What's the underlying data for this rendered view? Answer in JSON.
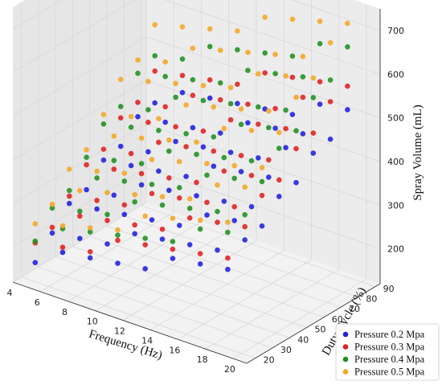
{
  "chart_data": {
    "type": "scatter",
    "projection": "3d",
    "xlabel": "Frequency (Hz)",
    "ylabel": "Duty Cycle (%)",
    "zlabel": "Spray Volume (mL)",
    "xlim": [
      4,
      21
    ],
    "ylim": [
      15,
      93
    ],
    "zlim": [
      120,
      750
    ],
    "x_ticks": [
      "4",
      "6",
      "8",
      "10",
      "12",
      "14",
      "16",
      "18",
      "20"
    ],
    "y_ticks": [
      "20",
      "30",
      "40",
      "50",
      "60",
      "70",
      "80",
      "90"
    ],
    "z_ticks": [
      "200",
      "300",
      "400",
      "500",
      "600",
      "700"
    ],
    "grid": true,
    "legend_position": "bottom-right",
    "x_values": [
      5,
      7,
      9,
      11,
      13,
      15,
      17,
      19
    ],
    "y_values": [
      20,
      30,
      40,
      50,
      60,
      70,
      80,
      90
    ],
    "series": [
      {
        "name": "Pressure 0.2 Mpa",
        "color": "#1f1fe0",
        "min": 180,
        "max": 500
      },
      {
        "name": "Pressure 0.3 Mpa",
        "color": "#e02020",
        "min": 205,
        "max": 570
      },
      {
        "name": "Pressure 0.4 Mpa",
        "color": "#1f8f1f",
        "min": 225,
        "max": 640
      },
      {
        "name": "Pressure 0.5 Mpa",
        "color": "#f5a623",
        "min": 245,
        "max": 710
      }
    ]
  }
}
